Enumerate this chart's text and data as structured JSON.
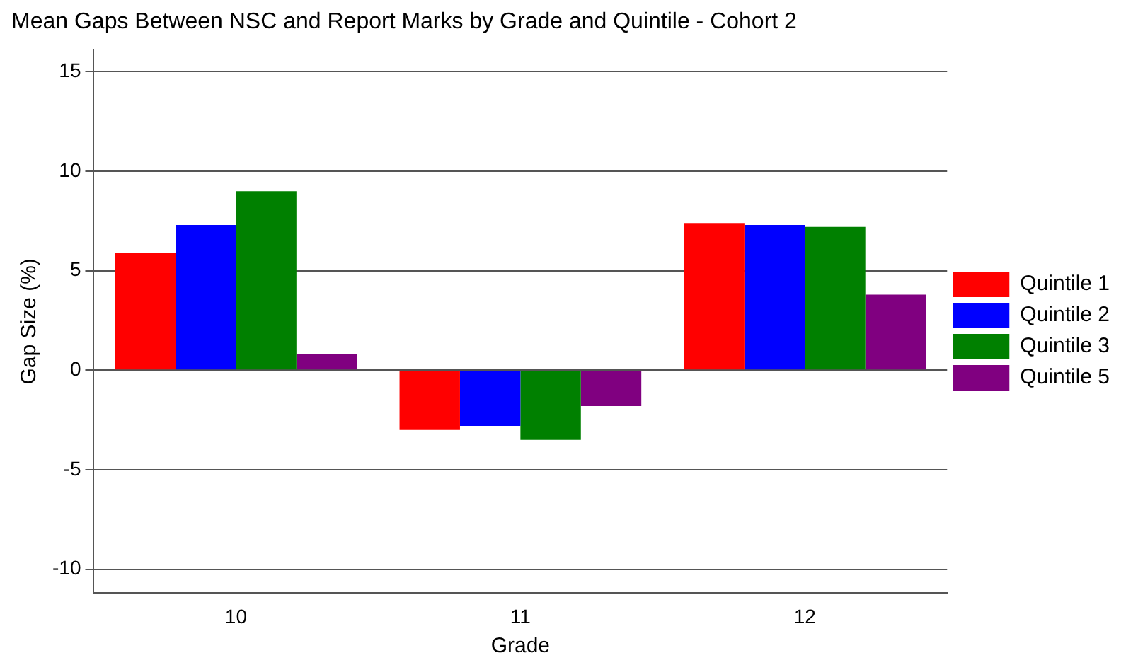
{
  "chart_data": {
    "type": "bar",
    "title": "Mean Gaps Between NSC and Report Marks by Grade and Quintile - Cohort 2",
    "xlabel": "Grade",
    "ylabel": "Gap Size (%)",
    "categories": [
      "10",
      "11",
      "12"
    ],
    "series": [
      {
        "name": "Quintile 1",
        "color": "#ff0000",
        "values": [
          5.9,
          -3.0,
          7.4
        ]
      },
      {
        "name": "Quintile 2",
        "color": "#0000ff",
        "values": [
          7.3,
          -2.8,
          7.3
        ]
      },
      {
        "name": "Quintile 3",
        "color": "#008000",
        "values": [
          9.0,
          -3.5,
          7.2
        ]
      },
      {
        "name": "Quintile 5",
        "color": "#800080",
        "values": [
          0.8,
          -1.8,
          3.8
        ]
      }
    ],
    "ylim": [
      -11.2,
      16.1
    ],
    "yticks": [
      -10,
      -5,
      0,
      5,
      10,
      15
    ],
    "grid": "y",
    "legend": "right"
  }
}
